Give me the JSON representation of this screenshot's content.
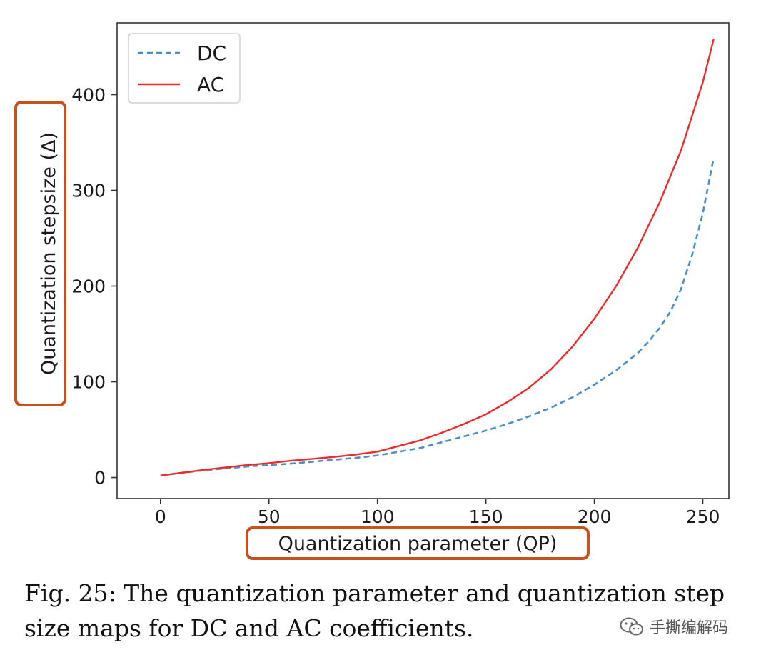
{
  "chart_data": {
    "type": "line",
    "xlabel": "Quantization parameter (QP)",
    "ylabel": "Quantization stepsize (Δ)",
    "xlim": [
      -20,
      262
    ],
    "ylim": [
      -22,
      475
    ],
    "xticks": [
      0,
      50,
      100,
      150,
      200,
      250
    ],
    "yticks": [
      0,
      100,
      200,
      300,
      400
    ],
    "grid": false,
    "legend_position": "top-left",
    "series": [
      {
        "name": "DC",
        "style": "dashed",
        "color": "#4a90c4",
        "x": [
          0,
          10,
          20,
          30,
          40,
          50,
          60,
          70,
          80,
          90,
          100,
          110,
          120,
          130,
          140,
          150,
          160,
          170,
          180,
          190,
          200,
          210,
          220,
          225,
          230,
          235,
          240,
          245,
          250,
          255
        ],
        "y": [
          2,
          5,
          7.5,
          9.5,
          11.5,
          13,
          14.5,
          16.5,
          18.5,
          20.5,
          23,
          27,
          31,
          37,
          43,
          49,
          56,
          64,
          73,
          84,
          97,
          112,
          130,
          142,
          156,
          173,
          197,
          232,
          276,
          334
        ]
      },
      {
        "name": "AC",
        "style": "solid",
        "color": "#ee2b2b",
        "x": [
          0,
          10,
          20,
          30,
          40,
          50,
          60,
          70,
          80,
          90,
          100,
          110,
          120,
          130,
          140,
          150,
          160,
          170,
          180,
          190,
          200,
          210,
          220,
          230,
          240,
          250,
          255
        ],
        "y": [
          2,
          5,
          8,
          10.5,
          13,
          15,
          17.5,
          19.5,
          21.5,
          24,
          27,
          33,
          39,
          47,
          56,
          66,
          79,
          94,
          113,
          137,
          166,
          200,
          240,
          287,
          342,
          413,
          458
        ]
      }
    ]
  },
  "caption": {
    "text": "Fig. 25: The quantization parameter and quantization step size maps for DC and AC coefficients."
  },
  "watermark": {
    "text": "手撕编解码",
    "icon": "wechat-icon"
  },
  "colors": {
    "highlight_box": "#c8501e",
    "axis": "#333333"
  }
}
